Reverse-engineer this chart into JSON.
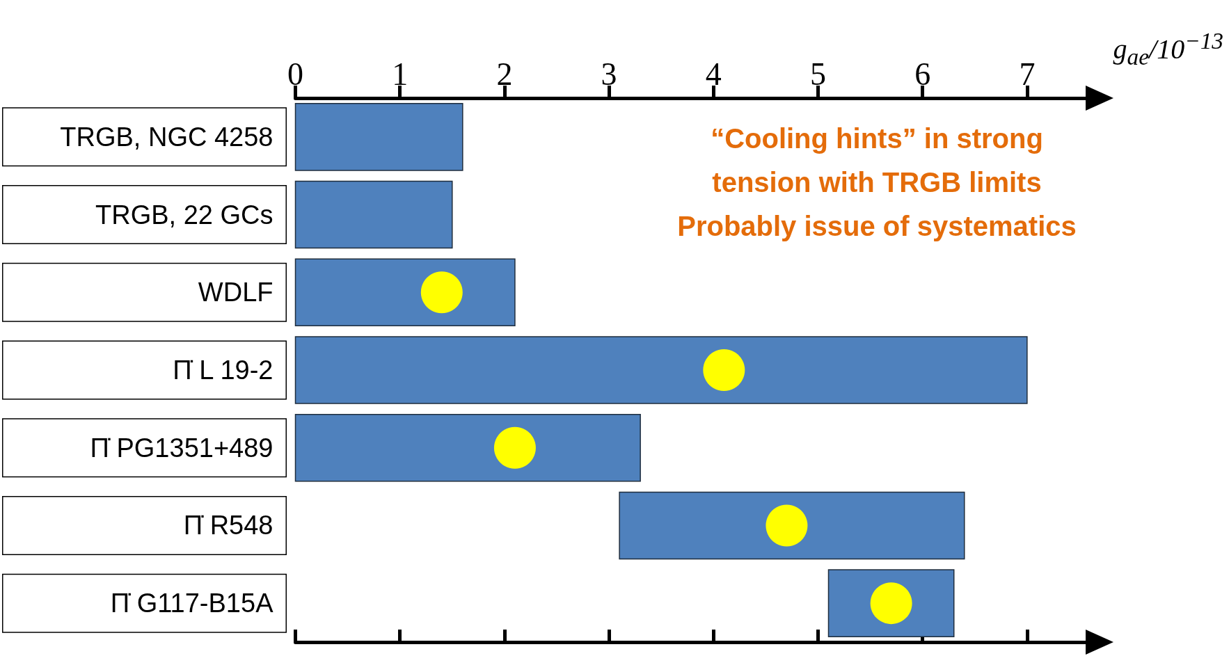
{
  "chart_data": {
    "type": "bar",
    "orientation": "horizontal",
    "xlabel": "g$_{ae}$/10$^{−13}$",
    "categories": [
      "TRGB, NGC 4258",
      "TRGB, 22 GCs",
      "WDLF",
      "Π̇ L 19-2",
      "Π̇ PG1351+489",
      "Π̇ R548",
      "Π̇ G117-B15A"
    ],
    "series": [
      {
        "color": "#4f81bd",
        "base": [
          0,
          0,
          0,
          0,
          0,
          3.1,
          5.1
        ],
        "values": [
          1.6,
          1.5,
          2.1,
          7.0,
          3.3,
          3.3,
          1.2
        ]
      },
      {
        "type": "scatter",
        "color": "#ffff00",
        "values": [
          null,
          null,
          1.4,
          4.1,
          2.1,
          4.7,
          5.7
        ]
      }
    ],
    "xlim": [
      0,
      7.6
    ],
    "xticks": [
      0,
      1,
      2,
      3,
      4,
      5,
      6,
      7
    ],
    "grid": false,
    "marker": "circle",
    "annotations": [
      "“Cooling hints” in strong",
      "tension with TRGB limits",
      "Probably issue of systematics"
    ]
  }
}
